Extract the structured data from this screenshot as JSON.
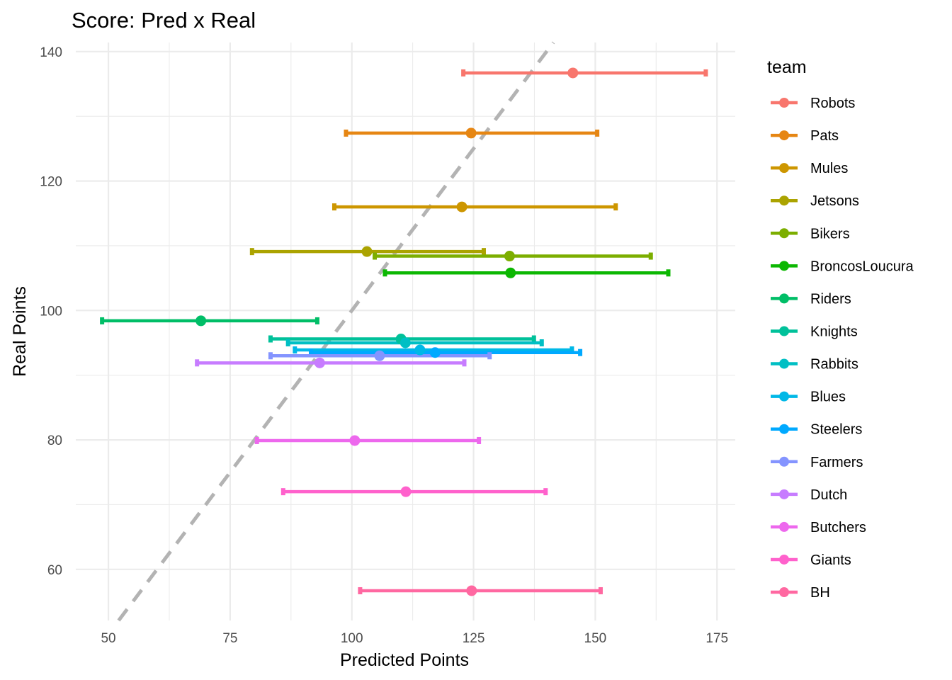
{
  "chart_data": {
    "type": "scatter",
    "title": "Score: Pred x Real",
    "xlabel": "Predicted Points",
    "ylabel": "Real Points",
    "xlim": [
      43.3,
      178.75
    ],
    "ylim": [
      52.1,
      141.4
    ],
    "x_ticks": [
      50,
      75,
      100,
      125,
      150,
      175
    ],
    "x_tick_labels": [
      "50",
      "75",
      "100",
      "125",
      "150",
      "175"
    ],
    "y_ticks": [
      60,
      80,
      100,
      120,
      140
    ],
    "y_tick_labels": [
      "60",
      "80",
      "100",
      "120",
      "140"
    ],
    "grid": true,
    "reference_line": {
      "type": "identity",
      "style": "dashed",
      "color": "#b3b3b3"
    },
    "legend": {
      "title": "team",
      "position": "right"
    },
    "series": [
      {
        "name": "Robots",
        "color": "#F8766D",
        "pred": 145.4,
        "pred_low": 122.9,
        "pred_high": 172.7,
        "real": 136.7
      },
      {
        "name": "Pats",
        "color": "#E68613",
        "pred": 124.5,
        "pred_low": 98.8,
        "pred_high": 150.4,
        "real": 127.4
      },
      {
        "name": "Mules",
        "color": "#CD9600",
        "pred": 122.6,
        "pred_low": 96.4,
        "pred_high": 154.2,
        "real": 116.0
      },
      {
        "name": "Jetsons",
        "color": "#ABA300",
        "pred": 103.1,
        "pred_low": 79.5,
        "pred_high": 127.1,
        "real": 109.1
      },
      {
        "name": "Bikers",
        "color": "#7CAE00",
        "pred": 132.4,
        "pred_low": 104.7,
        "pred_high": 161.4,
        "real": 108.4
      },
      {
        "name": "BroncosLoucura",
        "color": "#0CB702",
        "pred": 132.6,
        "pred_low": 106.8,
        "pred_high": 165.0,
        "real": 105.8
      },
      {
        "name": "Riders",
        "color": "#00BE67",
        "pred": 69.0,
        "pred_low": 48.7,
        "pred_high": 92.9,
        "real": 98.4
      },
      {
        "name": "Knights",
        "color": "#00C19A",
        "pred": 110.1,
        "pred_low": 83.3,
        "pred_high": 137.4,
        "real": 95.6
      },
      {
        "name": "Rabbits",
        "color": "#00BFC4",
        "pred": 111.0,
        "pred_low": 86.9,
        "pred_high": 139.0,
        "real": 95.0
      },
      {
        "name": "Blues",
        "color": "#00B8E7",
        "pred": 114.0,
        "pred_low": 88.3,
        "pred_high": 145.2,
        "real": 93.9
      },
      {
        "name": "Steelers",
        "color": "#00A9FF",
        "pred": 117.1,
        "pred_low": 91.6,
        "pred_high": 146.9,
        "real": 93.5
      },
      {
        "name": "Farmers",
        "color": "#8494FF",
        "pred": 105.7,
        "pred_low": 83.3,
        "pred_high": 128.3,
        "real": 93.0
      },
      {
        "name": "Dutch",
        "color": "#C77CFF",
        "pred": 93.4,
        "pred_low": 68.2,
        "pred_high": 123.1,
        "real": 91.9
      },
      {
        "name": "Butchers",
        "color": "#ED68ED",
        "pred": 100.6,
        "pred_low": 80.5,
        "pred_high": 126.1,
        "real": 79.9
      },
      {
        "name": "Giants",
        "color": "#FF61CC",
        "pred": 111.1,
        "pred_low": 85.9,
        "pred_high": 139.8,
        "real": 72.0
      },
      {
        "name": "BH",
        "color": "#FF68A1",
        "pred": 124.6,
        "pred_low": 101.7,
        "pred_high": 151.1,
        "real": 56.7
      }
    ]
  }
}
